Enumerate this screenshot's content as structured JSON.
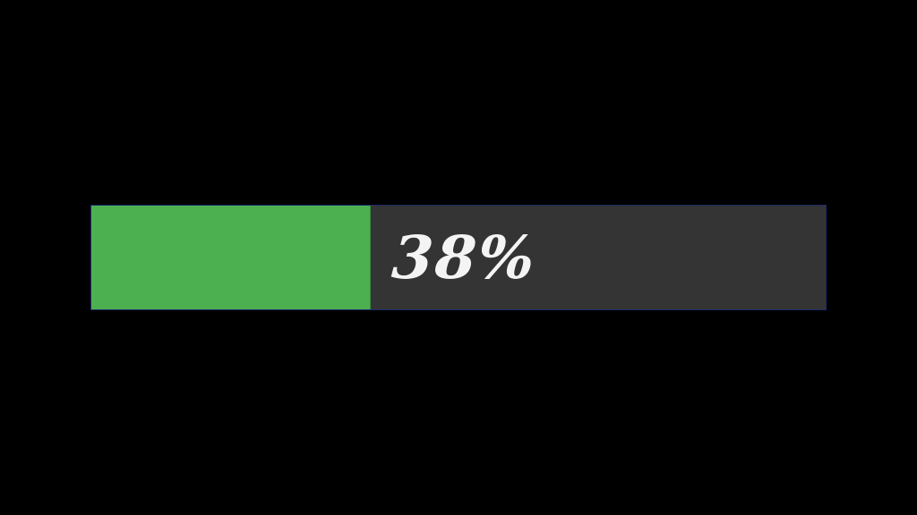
{
  "progress": {
    "value_percent": 38,
    "label": "38%",
    "fill_color": "#4caf50",
    "track_color": "#343434",
    "border_color": "#1f2a6b",
    "text_color": "#f4f4f4"
  }
}
